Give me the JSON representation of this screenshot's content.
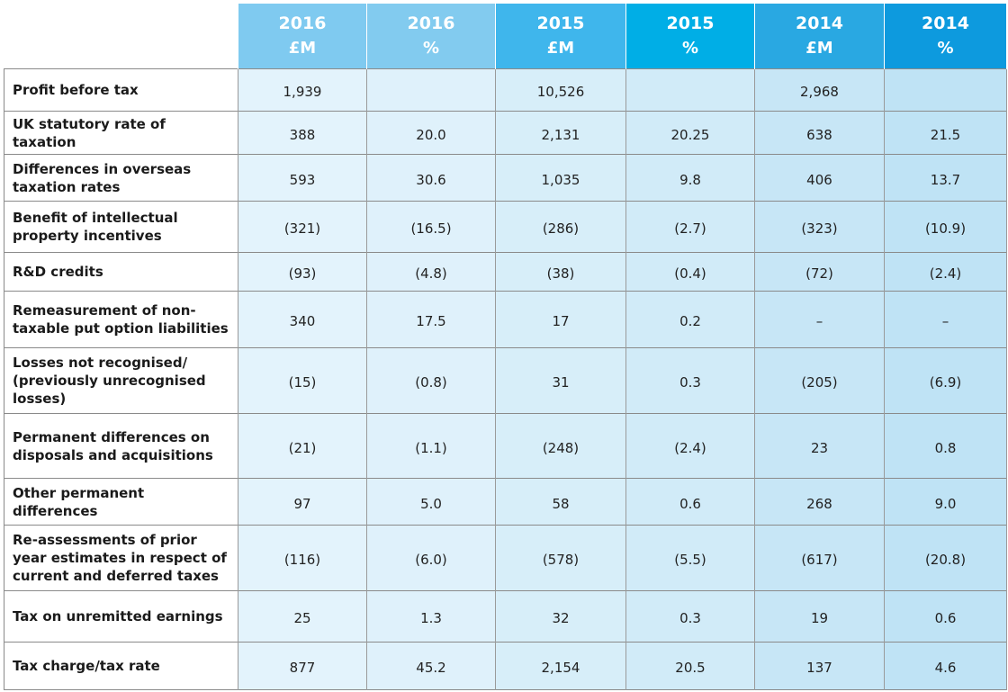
{
  "colors": {
    "header": [
      "#7fcaf0",
      "#82cbef",
      "#3fb6ec",
      "#00aee6",
      "#29a8e2",
      "#0d9ade"
    ],
    "body": [
      "#e3f3fc",
      "#dff1fb",
      "#d7eef9",
      "#d1ebf8",
      "#c7e6f6",
      "#bfe3f5"
    ]
  },
  "header": [
    {
      "year": "2016",
      "unit": "£M"
    },
    {
      "year": "2016",
      "unit": "%"
    },
    {
      "year": "2015",
      "unit": "£M"
    },
    {
      "year": "2015",
      "unit": "%"
    },
    {
      "year": "2014",
      "unit": "£M"
    },
    {
      "year": "2014",
      "unit": "%"
    }
  ],
  "rows": [
    {
      "label": "Profit before tax",
      "values": [
        "1,939",
        "",
        "10,526",
        "",
        "2,968",
        ""
      ]
    },
    {
      "label": "UK statutory rate of taxation",
      "values": [
        "388",
        "20.0",
        "2,131",
        "20.25",
        "638",
        "21.5"
      ]
    },
    {
      "label": "Differences in overseas taxation rates",
      "values": [
        "593",
        "30.6",
        "1,035",
        "9.8",
        "406",
        "13.7"
      ]
    },
    {
      "label": "Benefit of intellectual property incentives",
      "values": [
        "(321)",
        "(16.5)",
        "(286)",
        "(2.7)",
        "(323)",
        "(10.9)"
      ]
    },
    {
      "label": "R&D credits",
      "values": [
        "(93)",
        "(4.8)",
        "(38)",
        "(0.4)",
        "(72)",
        "(2.4)"
      ]
    },
    {
      "label": "Remeasurement of non-taxable put option liabilities",
      "values": [
        "340",
        "17.5",
        "17",
        "0.2",
        "–",
        "–"
      ]
    },
    {
      "label": "Losses not recognised/ (previously unrecognised losses)",
      "values": [
        "(15)",
        "(0.8)",
        "31",
        "0.3",
        "(205)",
        "(6.9)"
      ]
    },
    {
      "label": "Permanent differences on disposals and acquisitions",
      "values": [
        "(21)",
        "(1.1)",
        "(248)",
        "(2.4)",
        "23",
        "0.8"
      ]
    },
    {
      "label": "Other permanent differences",
      "values": [
        "97",
        "5.0",
        "58",
        "0.6",
        "268",
        "9.0"
      ]
    },
    {
      "label": "Re-assessments of prior year estimates in respect of current and deferred taxes",
      "values": [
        "(116)",
        "(6.0)",
        "(578)",
        "(5.5)",
        "(617)",
        "(20.8)"
      ]
    },
    {
      "label": "Tax on unremitted earnings",
      "values": [
        "25",
        "1.3",
        "32",
        "0.3",
        "19",
        "0.6"
      ]
    },
    {
      "label": "Tax charge/tax rate",
      "values": [
        "877",
        "45.2",
        "2,154",
        "20.5",
        "137",
        "4.6"
      ]
    }
  ]
}
